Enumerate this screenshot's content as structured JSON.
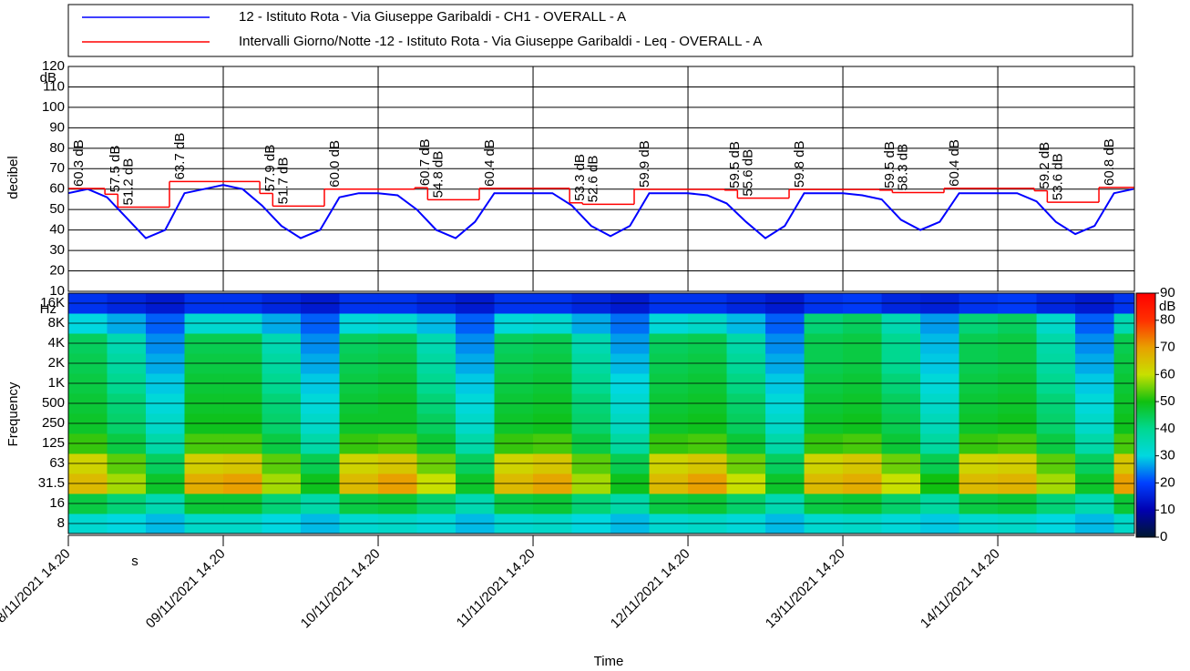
{
  "chart_data": [
    {
      "type": "line",
      "y_label": "decibel",
      "y_unit": "dB",
      "ylim": [
        10,
        120
      ],
      "yticks": [
        10,
        20,
        30,
        40,
        50,
        60,
        70,
        80,
        90,
        100,
        110,
        120
      ],
      "xlim": [
        "08/11/2021 14.20",
        "15/11/2021 11.30"
      ],
      "xticks": [
        "08/11/2021 14.20",
        "09/11/2021 14.20",
        "10/11/2021 14.20",
        "11/11/2021 14.20",
        "12/11/2021 14.20",
        "13/11/2021 14.20",
        "14/11/2021 14.20"
      ],
      "grid": true,
      "series": [
        {
          "name": "12 - Istituto Rota - Via Giuseppe Garibaldi - CH1 - OVERALL - A",
          "color": "#0000ff",
          "x": [
            "08/11/2021 14.20",
            "08/11/2021 17.20",
            "08/11/2021 20.20",
            "08/11/2021 23.20",
            "09/11/2021 02.20",
            "09/11/2021 05.20",
            "09/11/2021 08.20",
            "09/11/2021 11.20",
            "09/11/2021 14.20",
            "09/11/2021 17.20",
            "09/11/2021 20.20",
            "09/11/2021 23.20",
            "10/11/2021 02.20",
            "10/11/2021 05.20",
            "10/11/2021 08.20",
            "10/11/2021 11.20",
            "10/11/2021 14.20",
            "10/11/2021 17.20",
            "10/11/2021 20.20",
            "10/11/2021 23.20",
            "11/11/2021 02.20",
            "11/11/2021 05.20",
            "11/11/2021 08.20",
            "11/11/2021 11.20",
            "11/11/2021 14.20",
            "11/11/2021 17.20",
            "11/11/2021 20.20",
            "11/11/2021 23.20",
            "12/11/2021 02.20",
            "12/11/2021 05.20",
            "12/11/2021 08.20",
            "12/11/2021 11.20",
            "12/11/2021 14.20",
            "12/11/2021 17.20",
            "12/11/2021 20.20",
            "12/11/2021 23.20",
            "13/11/2021 02.20",
            "13/11/2021 05.20",
            "13/11/2021 08.20",
            "13/11/2021 11.20",
            "13/11/2021 14.20",
            "13/11/2021 17.20",
            "13/11/2021 20.20",
            "13/11/2021 23.20",
            "14/11/2021 02.20",
            "14/11/2021 05.20",
            "14/11/2021 08.20",
            "14/11/2021 11.20",
            "14/11/2021 14.20",
            "14/11/2021 17.20",
            "14/11/2021 20.20",
            "14/11/2021 23.20",
            "15/11/2021 02.20",
            "15/11/2021 05.20",
            "15/11/2021 08.20",
            "15/11/2021 11.20"
          ],
          "values": [
            58,
            60,
            56,
            46,
            36,
            40,
            58,
            60,
            62,
            60,
            52,
            42,
            36,
            40,
            56,
            58,
            58,
            57,
            50,
            40,
            36,
            44,
            58,
            58,
            58,
            58,
            52,
            42,
            37,
            42,
            58,
            58,
            58,
            57,
            53,
            44,
            36,
            42,
            58,
            58,
            58,
            57,
            55,
            45,
            40,
            44,
            58,
            58,
            58,
            58,
            54,
            44,
            38,
            42,
            58,
            60
          ]
        },
        {
          "name": "Intervalli Giorno/Notte -12 - Istituto Rota - Via Giuseppe Garibaldi - Leq - OVERALL - A",
          "color": "#ff0000",
          "step": true,
          "x": [
            "08/11/2021 14.20",
            "08/11/2021 20.00",
            "08/11/2021 22.00",
            "09/11/2021 06.00",
            "09/11/2021 20.00",
            "09/11/2021 22.00",
            "10/11/2021 06.00",
            "10/11/2021 20.00",
            "10/11/2021 22.00",
            "11/11/2021 06.00",
            "11/11/2021 20.00",
            "11/11/2021 22.00",
            "12/11/2021 06.00",
            "12/11/2021 20.00",
            "12/11/2021 22.00",
            "13/11/2021 06.00",
            "13/11/2021 20.00",
            "13/11/2021 22.00",
            "14/11/2021 06.00",
            "14/11/2021 20.00",
            "14/11/2021 22.00",
            "15/11/2021 06.00"
          ],
          "values": [
            60.3,
            57.5,
            51.2,
            63.7,
            57.9,
            51.7,
            60.0,
            60.7,
            54.8,
            60.4,
            53.3,
            52.6,
            59.9,
            59.5,
            55.6,
            59.8,
            59.5,
            58.3,
            60.4,
            59.2,
            53.6,
            60.8
          ],
          "value_labels": [
            "60.3 dB",
            "57.5 dB",
            "51.2 dB",
            "63.7 dB",
            "57.9 dB",
            "51.7 dB",
            "60.0 dB",
            "60.7 dB",
            "54.8 dB",
            "60.4 dB",
            "53.3 dB",
            "52.6 dB",
            "59.9 dB",
            "59.5 dB",
            "55.6 dB",
            "59.8 dB",
            "59.5 dB",
            "58.3 dB",
            "60.4 dB",
            "59.2 dB",
            "53.6 dB",
            "60.8 dB"
          ]
        }
      ]
    },
    {
      "type": "heatmap",
      "x_label": "Time",
      "x_unit": "s",
      "y_label": "Frequency",
      "y_unit": "Hz",
      "c_unit": "dB",
      "xlim": [
        "08/11/2021 14.20",
        "15/11/2021 11.30"
      ],
      "xticks": [
        {
          "value": "08/11/2021 14.20",
          "label": "08/11/2021 14.20"
        },
        {
          "value": "09/11/2021 14.20",
          "label": "09/11/2021 14.20"
        },
        {
          "value": "10/11/2021 14.20",
          "label": "10/11/2021 14.20"
        },
        {
          "value": "11/11/2021 14.20",
          "label": "11/11/2021 14.20"
        },
        {
          "value": "12/11/2021 14.20",
          "label": "12/11/2021 14.20"
        },
        {
          "value": "13/11/2021 14.20",
          "label": "13/11/2021 14.20"
        },
        {
          "value": "14/11/2021 14.20",
          "label": "14/11/2021 14.20"
        }
      ],
      "categories": [
        "8",
        "16",
        "31.5",
        "63",
        "125",
        "250",
        "500",
        "1K",
        "2K",
        "4K",
        "8K",
        "16K"
      ],
      "clim": [
        0,
        90
      ],
      "cticks": [
        0,
        10,
        20,
        30,
        40,
        50,
        60,
        70,
        80,
        90
      ],
      "colorscale": [
        [
          0,
          "#001830"
        ],
        [
          10,
          "#0000b0"
        ],
        [
          20,
          "#0040ff"
        ],
        [
          30,
          "#00d8e0"
        ],
        [
          40,
          "#00d890"
        ],
        [
          50,
          "#10c010"
        ],
        [
          60,
          "#c8e000"
        ],
        [
          70,
          "#e8a000"
        ],
        [
          80,
          "#ff3000"
        ],
        [
          90,
          "#ff0000"
        ]
      ],
      "x": [
        "08/11/2021 14.20",
        "08/11/2021 20.20",
        "09/11/2021 02.20",
        "09/11/2021 08.20",
        "09/11/2021 14.20",
        "09/11/2021 20.20",
        "10/11/2021 02.20",
        "10/11/2021 08.20",
        "10/11/2021 14.20",
        "10/11/2021 20.20",
        "11/11/2021 02.20",
        "11/11/2021 08.20",
        "11/11/2021 14.20",
        "11/11/2021 20.20",
        "12/11/2021 02.20",
        "12/11/2021 08.20",
        "12/11/2021 14.20",
        "12/11/2021 20.20",
        "13/11/2021 02.20",
        "13/11/2021 08.20",
        "13/11/2021 14.20",
        "13/11/2021 20.20",
        "14/11/2021 02.20",
        "14/11/2021 08.20",
        "14/11/2021 14.20",
        "14/11/2021 20.20",
        "15/11/2021 02.20",
        "15/11/2021 08.20"
      ],
      "z": [
        [
          32,
          46,
          66,
          62,
          52,
          48,
          47,
          46,
          45,
          44,
          30,
          18
        ],
        [
          30,
          42,
          58,
          54,
          46,
          43,
          42,
          40,
          38,
          36,
          27,
          16
        ],
        [
          28,
          36,
          48,
          44,
          37,
          33,
          31,
          29,
          27,
          25,
          22,
          14
        ],
        [
          33,
          47,
          68,
          63,
          53,
          49,
          48,
          47,
          46,
          45,
          32,
          18
        ],
        [
          33,
          47,
          70,
          64,
          53,
          49,
          48,
          47,
          46,
          45,
          32,
          18
        ],
        [
          30,
          42,
          58,
          54,
          46,
          43,
          42,
          40,
          38,
          36,
          27,
          16
        ],
        [
          28,
          37,
          49,
          45,
          37,
          33,
          31,
          29,
          27,
          25,
          22,
          14
        ],
        [
          32,
          46,
          66,
          62,
          52,
          48,
          47,
          46,
          45,
          44,
          31,
          18
        ],
        [
          33,
          47,
          70,
          64,
          53,
          48,
          48,
          47,
          46,
          45,
          32,
          18
        ],
        [
          31,
          43,
          60,
          55,
          47,
          44,
          42,
          40,
          38,
          36,
          28,
          16
        ],
        [
          28,
          36,
          48,
          44,
          37,
          33,
          31,
          29,
          27,
          25,
          22,
          14
        ],
        [
          32,
          46,
          66,
          62,
          52,
          48,
          47,
          46,
          45,
          44,
          31,
          18
        ],
        [
          33,
          47,
          69,
          64,
          53,
          49,
          48,
          47,
          46,
          45,
          32,
          18
        ],
        [
          30,
          42,
          58,
          54,
          46,
          43,
          42,
          40,
          38,
          36,
          27,
          16
        ],
        [
          28,
          37,
          49,
          45,
          38,
          34,
          32,
          30,
          28,
          26,
          23,
          14
        ],
        [
          32,
          46,
          66,
          62,
          52,
          48,
          47,
          46,
          45,
          44,
          31,
          18
        ],
        [
          33,
          47,
          70,
          64,
          53,
          49,
          48,
          47,
          46,
          45,
          33,
          18
        ],
        [
          31,
          43,
          60,
          55,
          47,
          44,
          43,
          41,
          39,
          37,
          28,
          16
        ],
        [
          28,
          36,
          48,
          44,
          37,
          33,
          31,
          29,
          27,
          25,
          22,
          14
        ],
        [
          32,
          46,
          66,
          62,
          52,
          48,
          47,
          46,
          45,
          45,
          42,
          18
        ],
        [
          33,
          47,
          68,
          64,
          53,
          49,
          48,
          47,
          46,
          46,
          44,
          19
        ],
        [
          31,
          43,
          60,
          55,
          47,
          45,
          44,
          42,
          40,
          40,
          36,
          16
        ],
        [
          29,
          38,
          50,
          45,
          38,
          35,
          33,
          31,
          29,
          28,
          26,
          15
        ],
        [
          32,
          46,
          66,
          62,
          52,
          48,
          47,
          46,
          45,
          45,
          42,
          18
        ],
        [
          33,
          47,
          67,
          63,
          53,
          49,
          48,
          47,
          46,
          46,
          44,
          19
        ],
        [
          30,
          42,
          58,
          54,
          46,
          43,
          42,
          40,
          38,
          37,
          33,
          16
        ],
        [
          28,
          36,
          48,
          44,
          37,
          33,
          31,
          29,
          27,
          25,
          22,
          14
        ],
        [
          33,
          47,
          70,
          64,
          53,
          49,
          48,
          47,
          46,
          45,
          36,
          18
        ]
      ]
    }
  ]
}
